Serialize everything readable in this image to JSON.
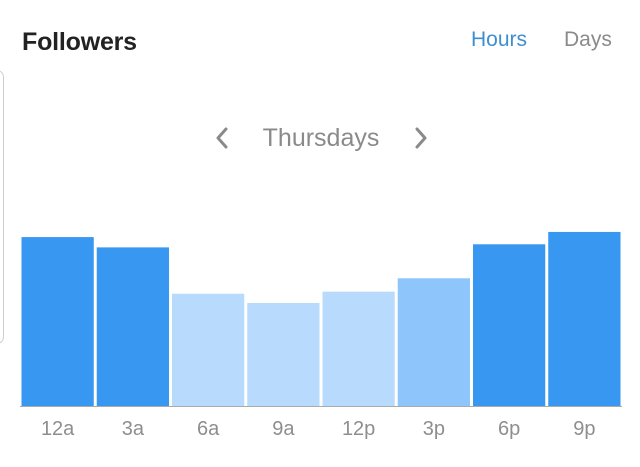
{
  "header": {
    "title": "Followers",
    "tabs": [
      {
        "label": "Hours",
        "active": true
      },
      {
        "label": "Days",
        "active": false
      }
    ]
  },
  "navigator": {
    "prev_icon": "chevron-left-icon",
    "label": "Thursdays",
    "next_icon": "chevron-right-icon"
  },
  "colors": {
    "title": "#222222",
    "tab_active": "#3e8fd1",
    "tab_inactive": "#8a8a8a",
    "nav": "#8a8a8a",
    "axis": "#aaaaaa",
    "tick_label": "#8e8e8e",
    "bar_high": "#3897f0",
    "bar_mid": "#8ec5fa",
    "bar_low": "#b8dbfd"
  },
  "chart_data": {
    "type": "bar",
    "categories": [
      "12a",
      "3a",
      "6a",
      "9a",
      "12p",
      "3p",
      "6p",
      "9p"
    ],
    "values": [
      164,
      154,
      109,
      100,
      111,
      124,
      157,
      169
    ],
    "intensity": [
      "high",
      "high",
      "low",
      "low",
      "low",
      "mid",
      "high",
      "high"
    ],
    "ylim": [
      0,
      200
    ],
    "grid": false
  }
}
